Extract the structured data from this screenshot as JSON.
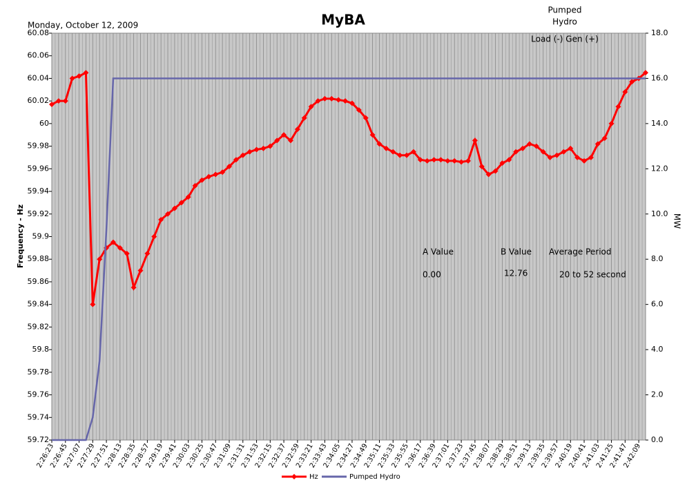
{
  "chart_data": {
    "type": "line",
    "title": "MyBA",
    "subtitle": "Monday, October 12, 2009",
    "y_label": "Frequency - Hz",
    "y2_label": "MW",
    "annotations": [
      "Pumped",
      "Hydro",
      "Load (-) Gen (+)",
      "A Value",
      "0.00",
      "B Value",
      "12.76",
      "Average Period",
      "20 to 52 second"
    ],
    "categories": [
      "2:26:23",
      null,
      "2:26:45",
      null,
      "2:27:07",
      null,
      "2:27:29",
      null,
      "2:27:51",
      null,
      "2:28:13",
      null,
      "2:28:35",
      null,
      "2:28:57",
      null,
      "2:29:19",
      null,
      "2:29:41",
      null,
      "2:30:03",
      null,
      "2:30:25",
      null,
      "2:30:47",
      null,
      "2:31:09",
      null,
      "2:31:31",
      null,
      "2:31:53",
      null,
      "2:32:15",
      null,
      "2:32:37",
      null,
      "2:32:59",
      null,
      "2:33:21",
      null,
      "2:33:43",
      null,
      "2:34:05",
      null,
      "2:34:27",
      null,
      "2:34:49",
      null,
      "2:35:11",
      null,
      "2:35:33",
      null,
      "2:35:55",
      null,
      "2:36:17",
      null,
      "2:36:39",
      null,
      "2:37:01",
      null,
      "2:37:23",
      null,
      "2:37:45",
      null,
      "2:38:07",
      null,
      "2:38:29",
      null,
      "2:38:51",
      null,
      "2:39:13",
      null,
      "2:39:35",
      null,
      "2:39:57",
      null,
      "2:40:19",
      null,
      "2:40:41",
      null,
      "2:41:03",
      null,
      "2:41:25",
      null,
      "2:41:47",
      null,
      "2:42:09",
      null
    ],
    "series": [
      {
        "name": "Hz",
        "color": "#ff0000",
        "axis": "y",
        "marker": "diamond",
        "values": [
          60.017,
          60.02,
          60.02,
          60.04,
          60.042,
          60.045,
          59.84,
          59.88,
          59.89,
          59.895,
          59.89,
          59.885,
          59.855,
          59.87,
          59.885,
          59.9,
          59.915,
          59.92,
          59.925,
          59.93,
          59.935,
          59.945,
          59.95,
          59.953,
          59.955,
          59.957,
          59.962,
          59.968,
          59.972,
          59.975,
          59.977,
          59.978,
          59.98,
          59.985,
          59.99,
          59.985,
          59.995,
          60.005,
          60.015,
          60.02,
          60.022,
          60.022,
          60.021,
          60.02,
          60.018,
          60.012,
          60.005,
          59.99,
          59.982,
          59.978,
          59.975,
          59.972,
          59.972,
          59.975,
          59.968,
          59.967,
          59.968,
          59.968,
          59.967,
          59.967,
          59.966,
          59.967,
          59.985,
          59.962,
          59.955,
          59.958,
          59.965,
          59.968,
          59.975,
          59.978,
          59.982,
          59.98,
          59.975,
          59.97,
          59.972,
          59.975,
          59.978,
          59.97,
          59.967,
          59.97,
          59.982,
          59.987,
          60.0,
          60.015,
          60.028,
          60.037,
          60.04,
          60.045
        ]
      },
      {
        "name": "Pumped Hydro",
        "color": "#6666aa",
        "axis": "y2",
        "values": [
          0,
          0,
          0,
          0,
          0,
          0,
          1.0,
          3.5,
          9.3,
          16,
          16,
          16,
          16,
          16,
          16,
          16,
          16,
          16,
          16,
          16,
          16,
          16,
          16,
          16,
          16,
          16,
          16,
          16,
          16,
          16,
          16,
          16,
          16,
          16,
          16,
          16,
          16,
          16,
          16,
          16,
          16,
          16,
          16,
          16,
          16,
          16,
          16,
          16,
          16,
          16,
          16,
          16,
          16,
          16,
          16,
          16,
          16,
          16,
          16,
          16,
          16,
          16,
          16,
          16,
          16,
          16,
          16,
          16,
          16,
          16,
          16,
          16,
          16,
          16,
          16,
          16,
          16,
          16,
          16,
          16,
          16,
          16,
          16,
          16,
          16,
          16,
          16,
          16
        ]
      }
    ],
    "ylim": [
      59.72,
      60.08
    ],
    "yticks": [
      59.72,
      59.74,
      59.76,
      59.78,
      59.8,
      59.82,
      59.84,
      59.86,
      59.88,
      59.9,
      59.92,
      59.94,
      59.96,
      59.98,
      60,
      60.02,
      60.04,
      60.06,
      60.08
    ],
    "y2lim": [
      0,
      18
    ],
    "y2ticks": [
      {
        "value": 0,
        "label": "0.0"
      },
      {
        "value": 2,
        "label": "2.0"
      },
      {
        "value": 4,
        "label": "4.0"
      },
      {
        "value": 6,
        "label": "6.0"
      },
      {
        "value": 8,
        "label": "8.0"
      },
      {
        "value": 10,
        "label": "10.0"
      },
      {
        "value": 12,
        "label": "12.0"
      },
      {
        "value": 14,
        "label": "14.0"
      },
      {
        "value": 16,
        "label": "16.0"
      },
      {
        "value": 18,
        "label": "18.0"
      }
    ],
    "grid": "x",
    "legend": "bottom"
  }
}
